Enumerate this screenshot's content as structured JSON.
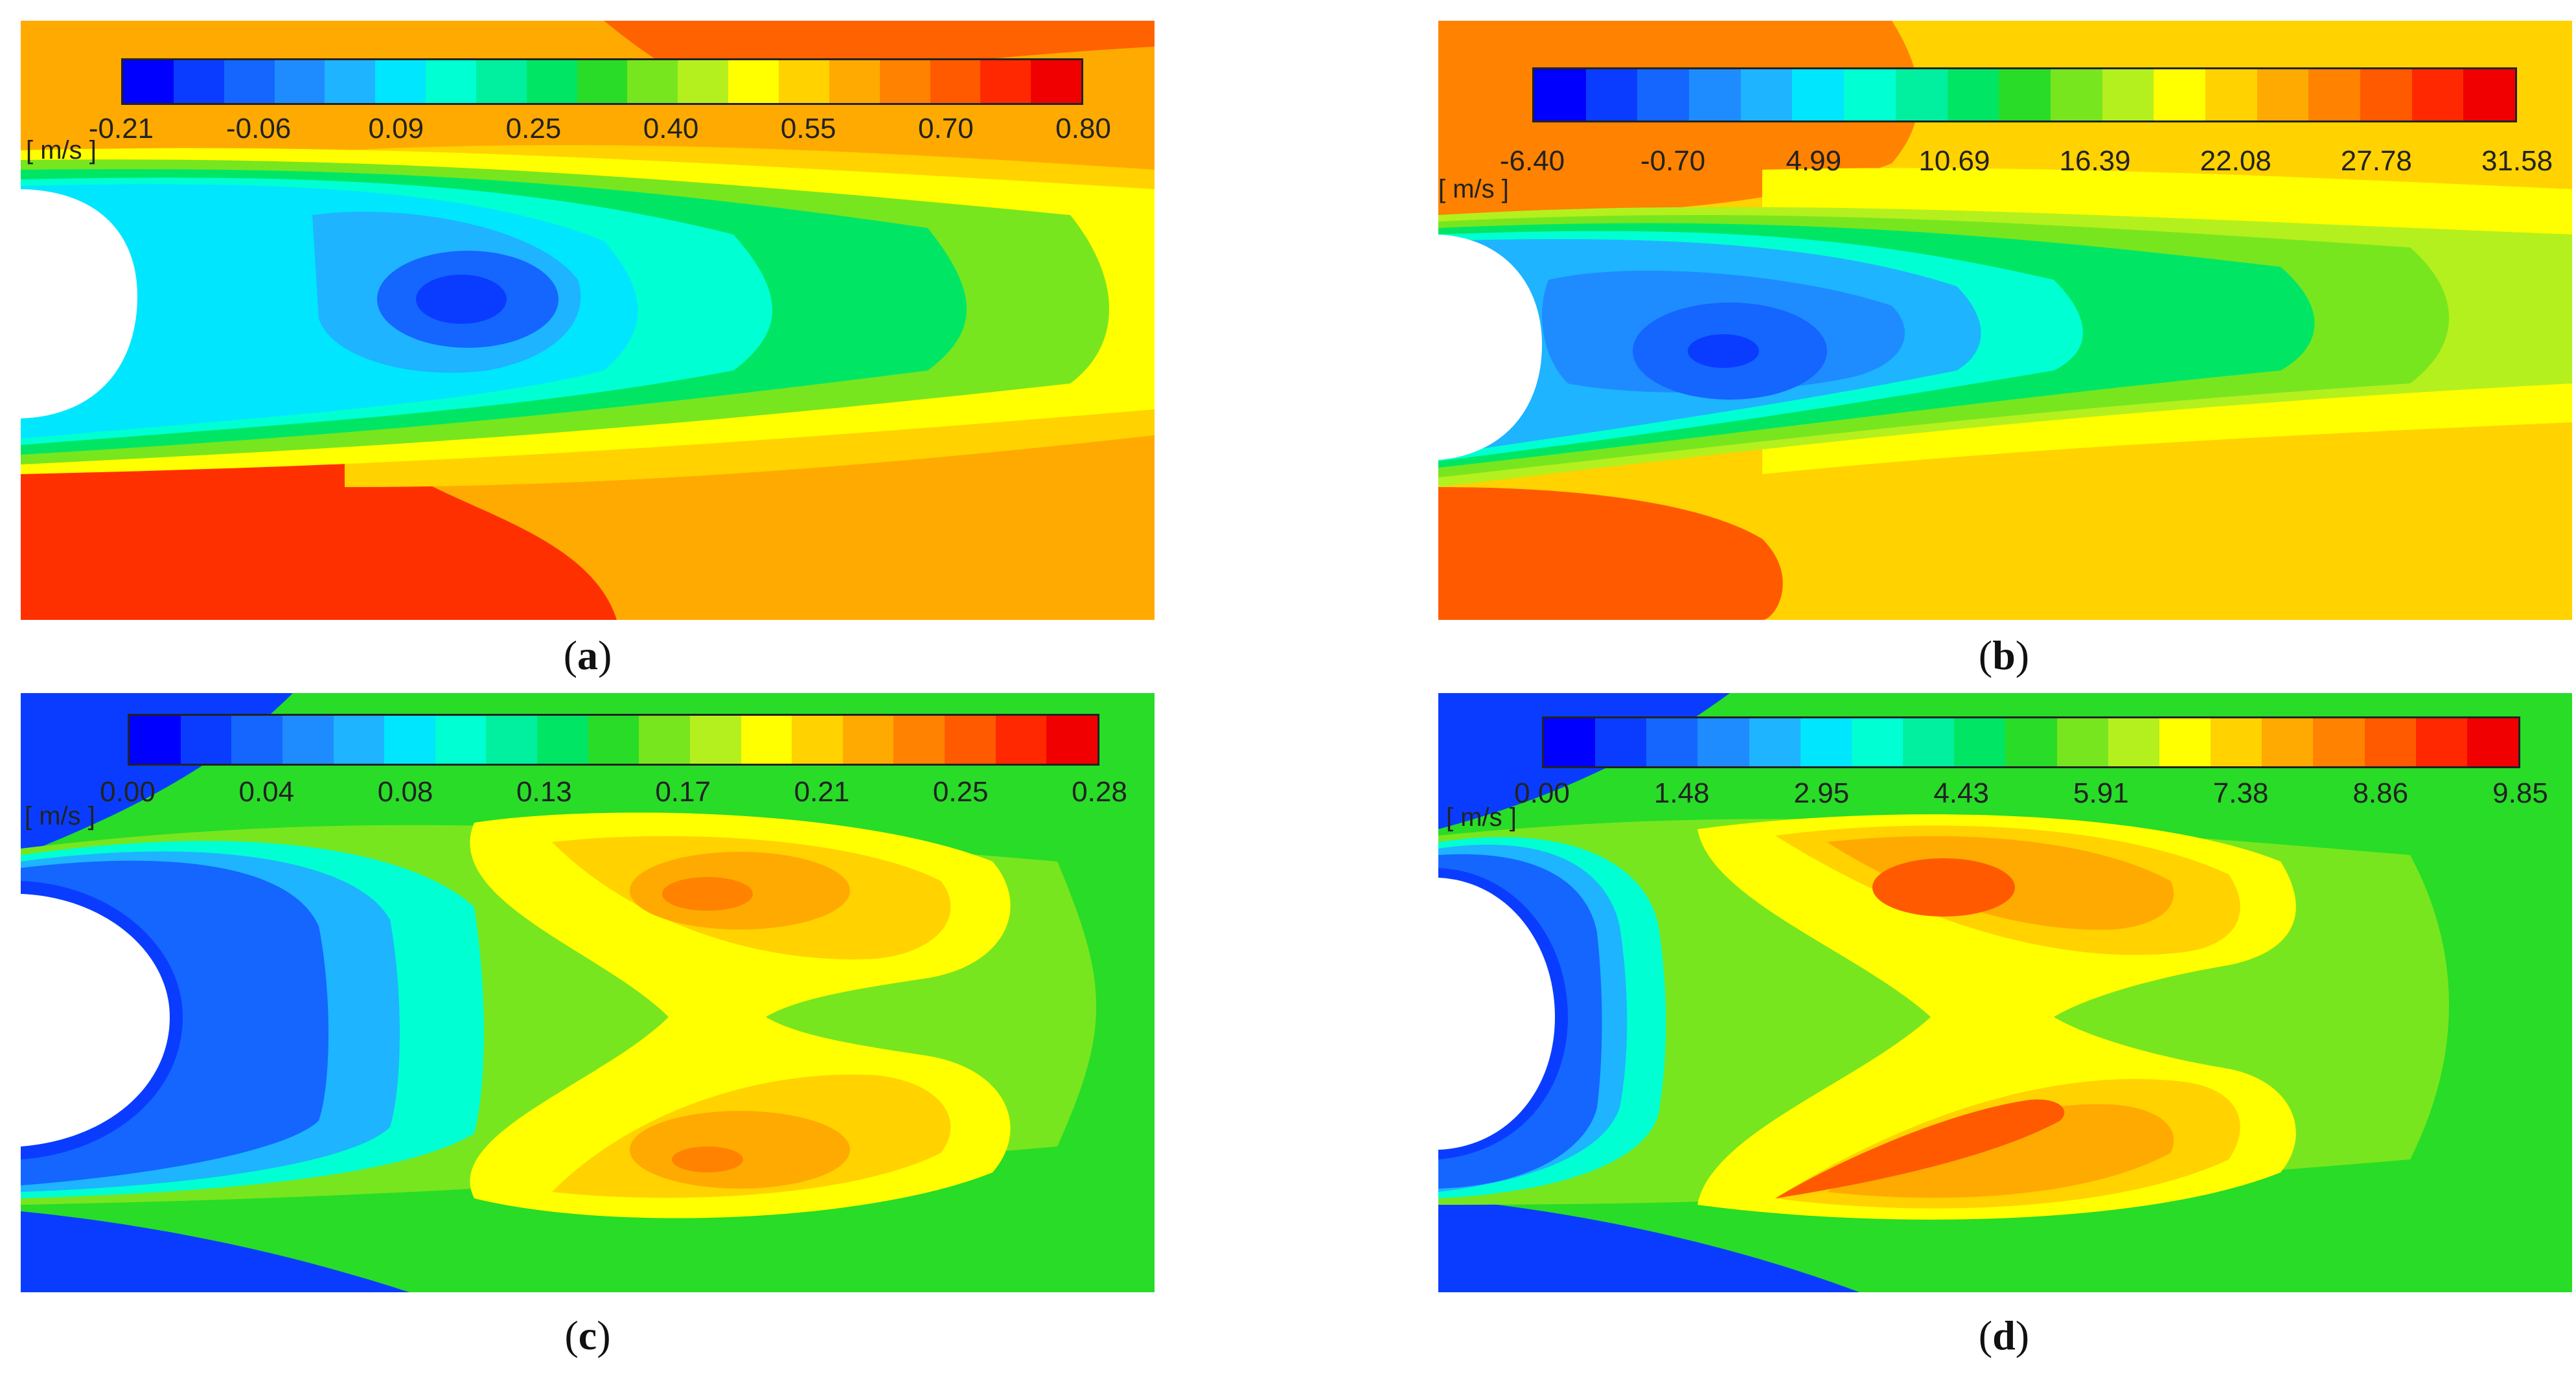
{
  "colormap": [
    "#0000ff",
    "#0a3cff",
    "#1466ff",
    "#1e8cff",
    "#1eb4ff",
    "#00e6ff",
    "#00ffd2",
    "#00f0a0",
    "#00e664",
    "#28dc28",
    "#78e61e",
    "#b4f01e",
    "#ffff00",
    "#ffd200",
    "#ffaa00",
    "#ff8200",
    "#ff5a00",
    "#ff2800",
    "#f00000"
  ],
  "panels": [
    {
      "id": "a",
      "caption": "a",
      "unit": "[ m/s ]",
      "ticks": [
        "-0.21",
        "-0.06",
        "0.09",
        "0.25",
        "0.40",
        "0.55",
        "0.70",
        "0.80"
      ],
      "colors": {
        "bg": "#ffaa00",
        "outer_top": "#ff5a00",
        "outer_bot": "#ff3000",
        "far": "#ffd200",
        "wake": "#00e6ff",
        "wake_mid": "#1eb4ff",
        "core": "#1466ff",
        "eye": "#0a3cff",
        "band1": "#00ffd2",
        "band2": "#00e664",
        "band3": "#78e61e",
        "band4": "#ffff00"
      }
    },
    {
      "id": "b",
      "caption": "b",
      "unit": "[ m/s ]",
      "ticks": [
        "-6.40",
        "-0.70",
        "4.99",
        "10.69",
        "16.39",
        "22.08",
        "27.78",
        "31.58"
      ],
      "colors": {
        "bg": "#ffd200",
        "outer_top": "#ff8200",
        "outer_bot": "#ff5a00",
        "far": "#ffff00",
        "wake": "#1eb4ff",
        "wake_mid": "#1e8cff",
        "core": "#1466ff",
        "eye": "#0a3cff",
        "band1": "#00ffd2",
        "band2": "#00e664",
        "band3": "#78e61e",
        "band4": "#b4f01e"
      }
    },
    {
      "id": "c",
      "caption": "c",
      "unit": "[ m/s ]",
      "ticks": [
        "0.00",
        "0.04",
        "0.08",
        "0.13",
        "0.17",
        "0.21",
        "0.25",
        "0.28"
      ],
      "colors": {
        "bg": "#28dc28",
        "edge": "#0a3cff",
        "near": "#1466ff",
        "ring1": "#1eb4ff",
        "ring2": "#00ffd2",
        "ring3": "#78e61e",
        "lobe1": "#ffff00",
        "lobe2": "#ffd200",
        "lobe3": "#ffaa00",
        "lobe4": "#ff8200"
      }
    },
    {
      "id": "d",
      "caption": "d",
      "unit": "[ m/s ]",
      "ticks": [
        "0.00",
        "1.48",
        "2.95",
        "4.43",
        "5.91",
        "7.38",
        "8.86",
        "9.85"
      ],
      "colors": {
        "bg": "#28dc28",
        "edge": "#0a3cff",
        "near": "#1466ff",
        "ring1": "#1eb4ff",
        "ring2": "#00ffd2",
        "ring3": "#78e61e",
        "lobe1": "#ffff00",
        "lobe2": "#ffd200",
        "lobe3": "#ffaa00",
        "lobe4": "#ff5a00"
      }
    }
  ]
}
